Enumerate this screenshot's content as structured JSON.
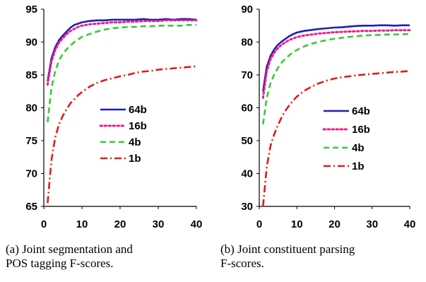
{
  "chart_data": [
    {
      "type": "line",
      "caption": [
        "(a) Joint segmentation and",
        "POS tagging F-scores."
      ],
      "xlim": [
        0,
        40
      ],
      "ylim": [
        65,
        95
      ],
      "xticks": [
        0,
        10,
        20,
        30,
        40
      ],
      "yticks": [
        65,
        70,
        75,
        80,
        85,
        90,
        95
      ],
      "grid": false,
      "legend_position": "center-right",
      "x": [
        1,
        2,
        3,
        4,
        5,
        6,
        7,
        8,
        9,
        10,
        12,
        14,
        16,
        18,
        20,
        22,
        24,
        26,
        28,
        30,
        32,
        34,
        36,
        38,
        40
      ],
      "series": [
        {
          "name": "64b",
          "color": "#1f1fb4",
          "dash": "solid",
          "values": [
            84.0,
            87.5,
            89.2,
            90.3,
            91.0,
            91.6,
            92.2,
            92.6,
            92.8,
            93.0,
            93.2,
            93.3,
            93.3,
            93.4,
            93.4,
            93.4,
            93.4,
            93.5,
            93.4,
            93.4,
            93.5,
            93.4,
            93.5,
            93.5,
            93.4
          ]
        },
        {
          "name": "16b",
          "color": "#e8208a",
          "dash": "dotted",
          "values": [
            83.5,
            87.0,
            88.8,
            89.9,
            90.6,
            91.2,
            91.7,
            92.0,
            92.3,
            92.5,
            92.7,
            92.8,
            92.9,
            93.0,
            93.0,
            93.1,
            93.1,
            93.2,
            93.2,
            93.2,
            93.3,
            93.3,
            93.3,
            93.3,
            93.3
          ]
        },
        {
          "name": "4b",
          "color": "#33cc33",
          "dash": "dashed",
          "values": [
            77.8,
            83.0,
            85.6,
            87.2,
            88.2,
            88.9,
            89.5,
            90.0,
            90.4,
            90.8,
            91.2,
            91.6,
            91.9,
            92.1,
            92.2,
            92.3,
            92.3,
            92.4,
            92.4,
            92.5,
            92.5,
            92.5,
            92.5,
            92.6,
            92.6
          ]
        },
        {
          "name": "1b",
          "color": "#dd1c1c",
          "dash": "dashdot",
          "values": [
            65.5,
            72.0,
            75.5,
            77.5,
            78.8,
            79.8,
            80.7,
            81.3,
            81.9,
            82.4,
            83.2,
            83.8,
            84.2,
            84.5,
            84.8,
            85.0,
            85.3,
            85.5,
            85.6,
            85.8,
            85.9,
            86.0,
            86.1,
            86.2,
            86.3
          ]
        }
      ]
    },
    {
      "type": "line",
      "caption": [
        "(b) Joint constituent parsing",
        "F-scores."
      ],
      "xlim": [
        0,
        40
      ],
      "ylim": [
        30,
        90
      ],
      "xticks": [
        0,
        10,
        20,
        30,
        40
      ],
      "yticks": [
        30,
        40,
        50,
        60,
        70,
        80,
        90
      ],
      "grid": false,
      "legend_position": "center-right",
      "x": [
        1,
        2,
        3,
        4,
        5,
        6,
        7,
        8,
        9,
        10,
        12,
        14,
        16,
        18,
        20,
        22,
        24,
        26,
        28,
        30,
        32,
        34,
        36,
        38,
        40
      ],
      "series": [
        {
          "name": "64b",
          "color": "#1f1fb4",
          "dash": "solid",
          "values": [
            65.0,
            72.5,
            75.8,
            77.8,
            79.2,
            80.2,
            81.0,
            81.8,
            82.4,
            82.9,
            83.4,
            83.7,
            84.0,
            84.2,
            84.4,
            84.5,
            84.7,
            84.9,
            85.0,
            85.0,
            85.1,
            85.1,
            85.0,
            85.1,
            85.1
          ]
        },
        {
          "name": "16b",
          "color": "#e8208a",
          "dash": "dotted",
          "values": [
            63.0,
            71.0,
            74.8,
            76.8,
            78.2,
            79.2,
            80.0,
            80.6,
            81.1,
            81.5,
            82.0,
            82.3,
            82.6,
            82.8,
            83.0,
            83.1,
            83.2,
            83.3,
            83.4,
            83.4,
            83.5,
            83.5,
            83.6,
            83.6,
            83.6
          ]
        },
        {
          "name": "4b",
          "color": "#33cc33",
          "dash": "dashed",
          "values": [
            55.0,
            63.0,
            67.5,
            70.2,
            72.2,
            73.8,
            75.0,
            76.0,
            76.9,
            77.6,
            78.7,
            79.5,
            80.1,
            80.6,
            81.0,
            81.3,
            81.6,
            81.8,
            82.0,
            82.1,
            82.2,
            82.3,
            82.3,
            82.4,
            82.4
          ]
        },
        {
          "name": "1b",
          "color": "#dd1c1c",
          "dash": "dashdot",
          "values": [
            30.0,
            42.0,
            48.5,
            52.0,
            54.8,
            57.2,
            59.2,
            60.8,
            62.2,
            63.4,
            65.2,
            66.5,
            67.5,
            68.3,
            68.9,
            69.3,
            69.6,
            69.9,
            70.1,
            70.3,
            70.5,
            70.7,
            70.9,
            71.0,
            71.2
          ]
        }
      ]
    }
  ]
}
